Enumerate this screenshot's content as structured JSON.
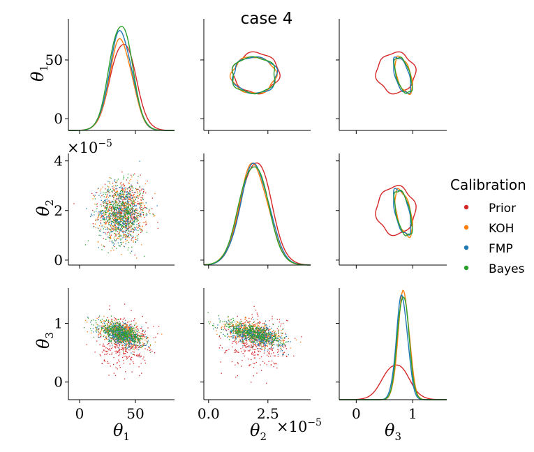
{
  "title": "case 4",
  "colors": {
    "prior": "#d62728",
    "koh": "#ff7f0e",
    "fmp": "#1f77b4",
    "bayes": "#2ca02c"
  },
  "legend": {
    "title": "Calibration",
    "position": "right",
    "items": [
      {
        "label": "Prior",
        "color": "#d62728"
      },
      {
        "label": "KOH",
        "color": "#ff7f0e"
      },
      {
        "label": "FMP",
        "color": "#1f77b4"
      },
      {
        "label": "Bayes",
        "color": "#2ca02c"
      }
    ]
  },
  "axis_labels": {
    "theta1": "θ",
    "theta1_sub": "1",
    "theta2": "θ",
    "theta2_sub": "2",
    "theta3": "θ",
    "theta3_sub": "3",
    "theta2_scale": "×10",
    "theta2_scale_exp": "−5"
  },
  "ticks": {
    "theta1": [
      {
        "value": 0,
        "label": "0"
      },
      {
        "value": 50,
        "label": "50"
      }
    ],
    "theta2_y": [
      {
        "value": 0,
        "label": "0"
      },
      {
        "value": 2,
        "label": "2"
      },
      {
        "value": 4,
        "label": "4"
      }
    ],
    "theta2_x": [
      {
        "value": 0,
        "label": "0.0"
      },
      {
        "value": 2.5,
        "label": "2.5"
      }
    ],
    "theta3": [
      {
        "value": 0,
        "label": "0"
      },
      {
        "value": 1,
        "label": "1"
      }
    ]
  },
  "chart_data": {
    "type": "pairplot",
    "variables": [
      "θ1",
      "θ2",
      "θ3"
    ],
    "ranges": {
      "theta1": [
        -10,
        85
      ],
      "theta2": [
        -0.2,
        4.3
      ],
      "theta3": [
        -0.3,
        1.6
      ]
    },
    "grid": false,
    "series": [
      {
        "name": "Prior",
        "key": "prior",
        "theta1": {
          "mean": 39,
          "sd": 11
        },
        "theta2": {
          "mean": 2.0,
          "sd": 0.62
        },
        "theta3": {
          "mean": 0.7,
          "sd": 0.22
        },
        "corr_13": 0.0,
        "corr_23": 0.0,
        "theta1_peak_density": 67,
        "theta2_peak_density": 4.0,
        "theta3_peak_density": 0.48
      },
      {
        "name": "KOH",
        "key": "koh",
        "theta1": {
          "mean": 37,
          "sd": 10
        },
        "theta2": {
          "mean": 1.9,
          "sd": 0.6
        },
        "theta3": {
          "mean": 0.84,
          "sd": 0.1
        },
        "corr_13": -0.55,
        "corr_23": -0.55,
        "theta1_peak_density": 68,
        "theta2_peak_density": 3.8,
        "theta3_peak_density": 1.44
      },
      {
        "name": "FMP",
        "key": "fmp",
        "theta1": {
          "mean": 37,
          "sd": 10
        },
        "theta2": {
          "mean": 1.95,
          "sd": 0.6
        },
        "theta3": {
          "mean": 0.81,
          "sd": 0.1
        },
        "corr_13": -0.55,
        "corr_23": -0.55,
        "theta1_peak_density": 74,
        "theta2_peak_density": 3.8,
        "theta3_peak_density": 1.38
      },
      {
        "name": "Bayes",
        "key": "bayes",
        "theta1": {
          "mean": 37,
          "sd": 10
        },
        "theta2": {
          "mean": 1.9,
          "sd": 0.6
        },
        "theta3": {
          "mean": 0.83,
          "sd": 0.1
        },
        "corr_13": -0.55,
        "corr_23": -0.55,
        "theta1_peak_density": 81,
        "theta2_peak_density": 3.85,
        "theta3_peak_density": 1.42
      }
    ]
  }
}
